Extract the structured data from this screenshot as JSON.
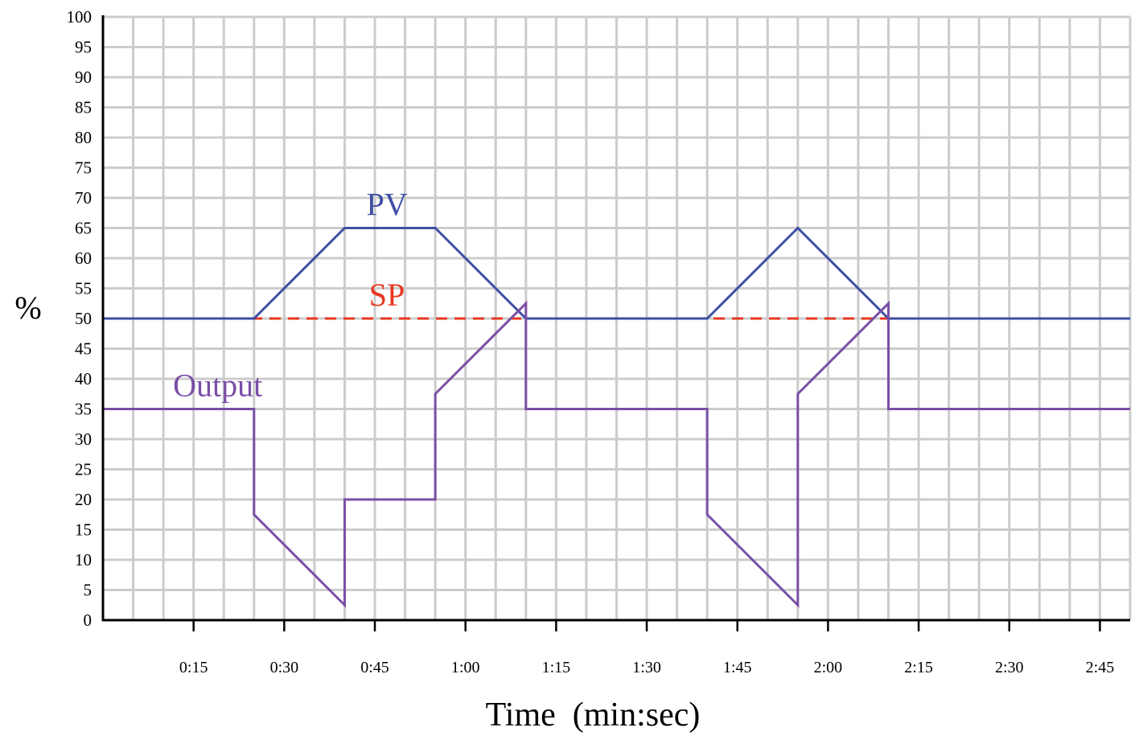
{
  "chart_data": {
    "type": "line",
    "xlabel": "Time  (min:sec)",
    "ylabel": "%",
    "xlim": [
      0,
      170
    ],
    "ylim": [
      0,
      100
    ],
    "grid": true,
    "x_ticks": [
      {
        "value": 15,
        "label": "0:15"
      },
      {
        "value": 30,
        "label": "0:30"
      },
      {
        "value": 45,
        "label": "0:45"
      },
      {
        "value": 60,
        "label": "1:00"
      },
      {
        "value": 75,
        "label": "1:15"
      },
      {
        "value": 90,
        "label": "1:30"
      },
      {
        "value": 105,
        "label": "1:45"
      },
      {
        "value": 120,
        "label": "2:00"
      },
      {
        "value": 135,
        "label": "2:15"
      },
      {
        "value": 150,
        "label": "2:30"
      },
      {
        "value": 165,
        "label": "2:45"
      }
    ],
    "y_ticks": [
      0,
      5,
      10,
      15,
      20,
      25,
      30,
      35,
      40,
      45,
      50,
      55,
      60,
      65,
      70,
      75,
      80,
      85,
      90,
      95,
      100
    ],
    "series": [
      {
        "name": "SP",
        "color": "#e8361f",
        "style": "dashed",
        "x": [
          0,
          170
        ],
        "y": [
          50,
          50
        ]
      },
      {
        "name": "PV",
        "color": "#3d4fa3",
        "style": "solid",
        "x": [
          0,
          25,
          40,
          55,
          70,
          100,
          115,
          130,
          170
        ],
        "y": [
          50,
          50,
          65,
          65,
          50,
          50,
          65,
          50,
          50
        ]
      },
      {
        "name": "Output",
        "color": "#7a4fa6",
        "style": "solid",
        "x": [
          0,
          25,
          25,
          40,
          40,
          55,
          55,
          70,
          70,
          100,
          100,
          115,
          115,
          130,
          130,
          170
        ],
        "y": [
          35,
          35,
          17.5,
          2.5,
          20,
          20,
          37.5,
          52.5,
          35,
          35,
          17.5,
          2.5,
          37.5,
          52.5,
          35,
          35
        ]
      }
    ],
    "annotations": [
      {
        "text": "PV",
        "x": 47,
        "y": 69
      },
      {
        "text": "SP",
        "x": 47,
        "y": 54
      },
      {
        "text": "Output",
        "x": 19,
        "y": 39
      }
    ]
  }
}
